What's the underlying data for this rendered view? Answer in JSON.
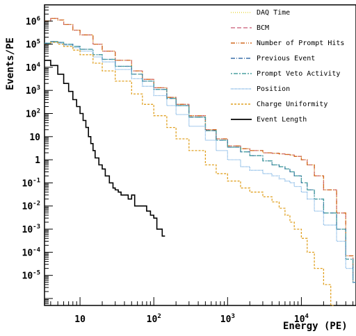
{
  "chart_data": {
    "type": "line",
    "title": "",
    "xlabel": "Energy (PE)",
    "ylabel": "Events/PE",
    "x_scale": "log",
    "y_scale": "log",
    "xlim": [
      3.3,
      55000
    ],
    "ylim": [
      5e-07,
      5000000
    ],
    "legend_position": "top-right",
    "x_tick_labels": [
      {
        "value": 10,
        "base": "10",
        "exp": ""
      },
      {
        "value": 100,
        "base": "10",
        "exp": "2"
      },
      {
        "value": 1000,
        "base": "10",
        "exp": "3"
      },
      {
        "value": 10000,
        "base": "10",
        "exp": "4"
      }
    ],
    "y_tick_labels": [
      {
        "value": 1000000,
        "base": "10",
        "exp": "6"
      },
      {
        "value": 100000,
        "base": "10",
        "exp": "5"
      },
      {
        "value": 10000,
        "base": "10",
        "exp": "4"
      },
      {
        "value": 1000,
        "base": "10",
        "exp": "3"
      },
      {
        "value": 100,
        "base": "10",
        "exp": "2"
      },
      {
        "value": 10,
        "base": "10",
        "exp": ""
      },
      {
        "value": 1,
        "base": "1",
        "exp": ""
      },
      {
        "value": 0.1,
        "base": "10",
        "exp": "-1"
      },
      {
        "value": 0.01,
        "base": "10",
        "exp": "-2"
      },
      {
        "value": 0.001,
        "base": "10",
        "exp": "-3"
      },
      {
        "value": 0.0001,
        "base": "10",
        "exp": "-4"
      },
      {
        "value": 1e-05,
        "base": "10",
        "exp": "-5"
      }
    ],
    "series": [
      {
        "name": "DAQ Time",
        "color": "#e8d84a",
        "dash": "1,2",
        "x": [
          3.3,
          4,
          5,
          6,
          8,
          10,
          15,
          20,
          30,
          50,
          70,
          100,
          150,
          200,
          300,
          500,
          700,
          1000,
          1500,
          2000,
          3000,
          4000,
          5000,
          6000,
          7000,
          8000,
          10000,
          12000,
          15000,
          20000,
          30000,
          40000,
          50000
        ],
        "values": [
          1000000,
          1300000,
          1100000,
          700000,
          400000,
          250000,
          100000,
          50000,
          20000,
          7000,
          3000,
          1300,
          500,
          250,
          80,
          20,
          8,
          4,
          3,
          2.5,
          2,
          1.9,
          1.8,
          1.7,
          1.6,
          1.4,
          1.0,
          0.6,
          0.2,
          0.05,
          0.005,
          7e-05,
          5e-06
        ]
      },
      {
        "name": "BCM",
        "color": "#d2748a",
        "dash": "6,3",
        "x": [
          3.3,
          4,
          5,
          6,
          8,
          10,
          15,
          20,
          30,
          50,
          70,
          100,
          150,
          200,
          300,
          500,
          700,
          1000,
          1500,
          2000,
          3000,
          4000,
          5000,
          6000,
          7000,
          8000,
          10000,
          12000,
          15000,
          20000,
          30000,
          40000,
          50000
        ],
        "values": [
          1000000,
          1300000,
          1100000,
          700000,
          400000,
          250000,
          100000,
          50000,
          20000,
          7000,
          3000,
          1300,
          500,
          250,
          80,
          20,
          8,
          4,
          3,
          2.5,
          2,
          1.9,
          1.8,
          1.7,
          1.6,
          1.4,
          1.0,
          0.6,
          0.2,
          0.05,
          0.005,
          7e-05,
          5e-06
        ]
      },
      {
        "name": "Number of Prompt Hits",
        "color": "#d2691e",
        "dash": "6,2,1,2,1,2",
        "x": [
          3.3,
          4,
          5,
          6,
          8,
          10,
          15,
          20,
          30,
          50,
          70,
          100,
          150,
          200,
          300,
          500,
          700,
          1000,
          1500,
          2000,
          3000,
          4000,
          5000,
          6000,
          7000,
          8000,
          10000,
          12000,
          15000,
          20000,
          30000,
          40000,
          50000
        ],
        "values": [
          1000000,
          1300000,
          1100000,
          700000,
          400000,
          250000,
          100000,
          50000,
          20000,
          7000,
          3000,
          1300,
          500,
          250,
          80,
          20,
          8,
          4,
          3,
          2.5,
          2,
          1.9,
          1.8,
          1.7,
          1.6,
          1.4,
          1.0,
          0.6,
          0.2,
          0.05,
          0.005,
          7e-05,
          5e-06
        ]
      },
      {
        "name": "Previous Event",
        "color": "#3a6fa8",
        "dash": "6,2,1,2",
        "x": [
          3.3,
          4,
          5,
          6,
          8,
          10,
          15,
          20,
          30,
          50,
          70,
          100,
          150,
          200,
          300,
          500,
          700,
          1000,
          1500,
          2000,
          3000,
          4000,
          5000,
          6000,
          7000,
          8000,
          10000,
          12000,
          15000,
          20000,
          30000,
          40000,
          50000
        ],
        "values": [
          110000,
          130000,
          120000,
          100000,
          80000,
          60000,
          35000,
          22000,
          11000,
          5000,
          2500,
          1100,
          450,
          220,
          70,
          18,
          7,
          3.5,
          2.2,
          1.5,
          0.9,
          0.6,
          0.5,
          0.4,
          0.3,
          0.2,
          0.1,
          0.05,
          0.02,
          0.005,
          0.001,
          5e-05,
          5e-06
        ]
      },
      {
        "name": "Prompt Veto Activity",
        "color": "#4aa0a0",
        "dash": "2,2,6,2",
        "x": [
          3.3,
          4,
          5,
          6,
          8,
          10,
          15,
          20,
          30,
          50,
          70,
          100,
          150,
          200,
          300,
          500,
          700,
          1000,
          1500,
          2000,
          3000,
          4000,
          5000,
          6000,
          7000,
          8000,
          10000,
          12000,
          15000,
          20000,
          30000,
          40000,
          50000
        ],
        "values": [
          110000,
          130000,
          120000,
          100000,
          80000,
          60000,
          35000,
          22000,
          11000,
          5000,
          2500,
          1100,
          450,
          220,
          70,
          18,
          7,
          3.5,
          2.2,
          1.5,
          0.9,
          0.6,
          0.5,
          0.4,
          0.3,
          0.2,
          0.1,
          0.05,
          0.02,
          0.005,
          0.001,
          5e-05,
          5e-06
        ]
      },
      {
        "name": "Position",
        "color": "#6aa8e0",
        "dash": "1,1",
        "x": [
          3.3,
          4,
          5,
          6,
          8,
          10,
          15,
          20,
          30,
          50,
          70,
          100,
          150,
          200,
          300,
          500,
          700,
          1000,
          1500,
          2000,
          3000,
          4000,
          5000,
          6000,
          7000,
          8000,
          10000,
          12000,
          15000,
          20000,
          30000,
          40000,
          50000
        ],
        "values": [
          100000,
          120000,
          110000,
          90000,
          70000,
          50000,
          28000,
          17000,
          8000,
          3200,
          1500,
          600,
          220,
          90,
          28,
          7,
          2.5,
          1.0,
          0.5,
          0.35,
          0.25,
          0.2,
          0.15,
          0.12,
          0.1,
          0.07,
          0.04,
          0.02,
          0.006,
          0.0015,
          0.0003,
          2e-05,
          5e-06
        ]
      },
      {
        "name": "Charge Uniformity",
        "color": "#e0a020",
        "dash": "3,2",
        "x": [
          3.3,
          4,
          5,
          6,
          8,
          10,
          15,
          20,
          30,
          50,
          70,
          100,
          150,
          200,
          300,
          500,
          700,
          1000,
          1500,
          2000,
          3000,
          4000,
          5000,
          6000,
          7000,
          8000,
          10000,
          12000,
          15000,
          20000,
          25000
        ],
        "values": [
          100000,
          120000,
          100000,
          80000,
          55000,
          35000,
          15000,
          7000,
          2500,
          700,
          250,
          80,
          25,
          8,
          2.5,
          0.6,
          0.25,
          0.12,
          0.06,
          0.04,
          0.025,
          0.015,
          0.008,
          0.004,
          0.002,
          0.001,
          0.0004,
          0.0001,
          2e-05,
          4e-06,
          5e-07
        ]
      },
      {
        "name": "Event Length",
        "color": "#000000",
        "dash": "",
        "x": [
          3.3,
          4,
          5,
          6,
          7,
          8,
          9,
          10,
          11,
          12,
          13,
          14,
          15,
          16,
          18,
          20,
          22,
          25,
          28,
          30,
          33,
          36,
          40,
          45,
          50,
          55,
          60,
          65,
          70,
          80,
          90,
          100,
          110,
          120,
          130
        ],
        "values": [
          20000,
          12000,
          5000,
          2000,
          900,
          400,
          200,
          100,
          50,
          25,
          10,
          5,
          2.5,
          1.2,
          0.6,
          0.4,
          0.2,
          0.1,
          0.06,
          0.05,
          0.04,
          0.03,
          0.03,
          0.02,
          0.03,
          0.01,
          0.01,
          0.01,
          0.01,
          0.006,
          0.004,
          0.003,
          0.001,
          0.001,
          0.0005
        ]
      }
    ]
  }
}
